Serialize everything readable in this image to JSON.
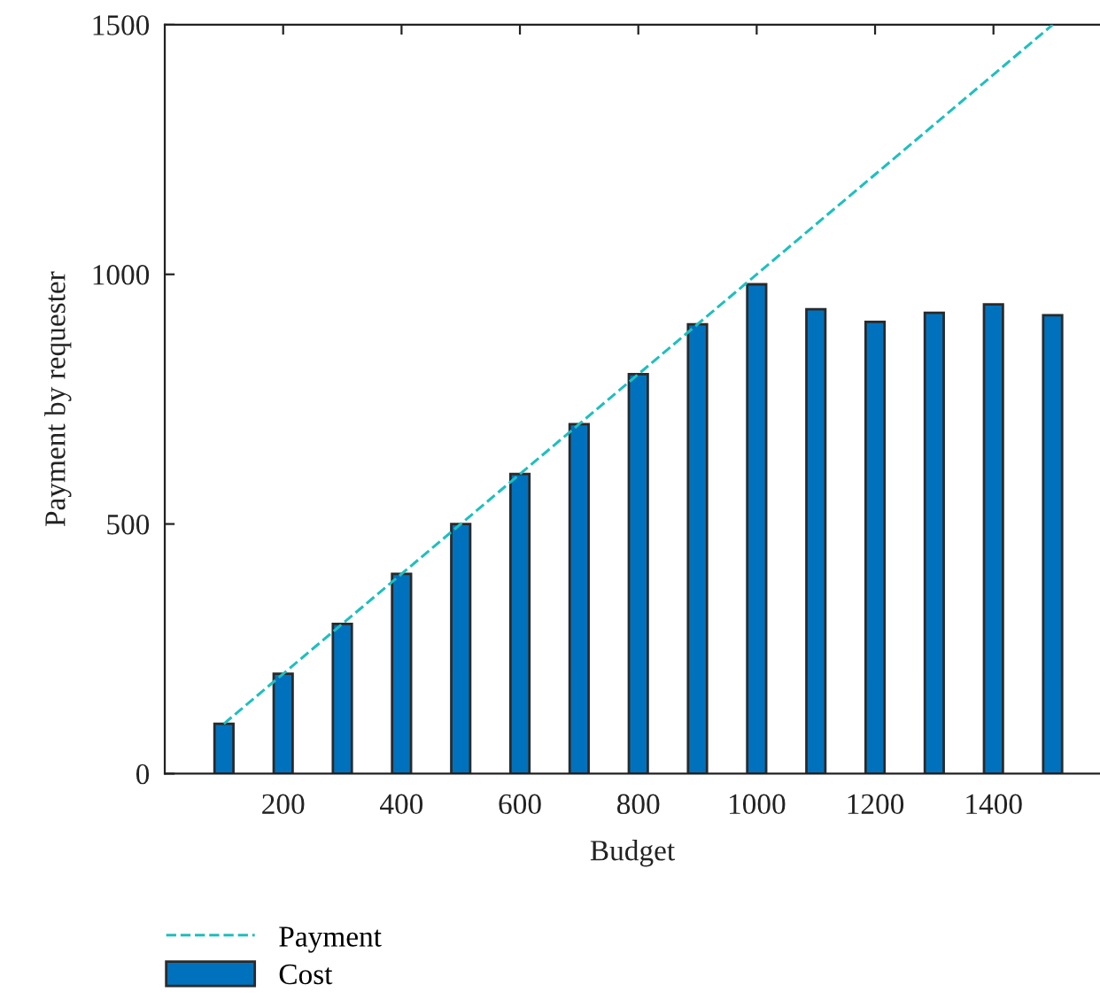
{
  "chart_data": {
    "type": "bar",
    "xlabel": "Budget",
    "ylabel": "Payment by requester",
    "x": [
      100,
      200,
      300,
      400,
      500,
      600,
      700,
      800,
      900,
      1000,
      1100,
      1200,
      1300,
      1400,
      1500
    ],
    "series": [
      {
        "name": "Payment",
        "type": "line",
        "color": "#1fbfbf",
        "line_style": "dashed",
        "x": [
          100,
          1500
        ],
        "values": [
          100,
          1500
        ]
      },
      {
        "name": "Cost",
        "color": "#0072bd",
        "values": [
          100,
          200,
          300,
          400,
          500,
          600,
          700,
          800,
          900,
          980,
          930,
          905,
          923,
          940,
          918
        ]
      }
    ],
    "xlim": [
      0,
      1580
    ],
    "xticks": [
      200,
      400,
      600,
      800,
      1000,
      1200,
      1400
    ],
    "ylim": [
      0,
      1500
    ],
    "yticks": [
      0,
      500,
      1000,
      1500
    ],
    "grid": false,
    "legend": "bottom left"
  }
}
